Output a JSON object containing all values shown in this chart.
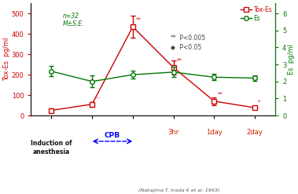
{
  "x_positions": [
    0,
    1,
    2,
    3,
    4,
    5
  ],
  "tox_values": [
    25,
    55,
    435,
    235,
    70,
    38
  ],
  "tox_errors": [
    8,
    12,
    55,
    35,
    18,
    8
  ],
  "es_values": [
    2.6,
    2.0,
    2.4,
    2.55,
    2.25,
    2.2
  ],
  "es_errors": [
    0.3,
    0.35,
    0.25,
    0.3,
    0.18,
    0.18
  ],
  "tox_color": "#cc0000",
  "es_color": "#007700",
  "ylim_left": [
    0,
    550
  ],
  "ylim_right": [
    0,
    6.6
  ],
  "yticks_left": [
    0,
    100,
    200,
    300,
    400,
    500
  ],
  "yticks_right": [
    0,
    1,
    2,
    3,
    4,
    5,
    6
  ],
  "ylabel_left": "Tox-Es  pg/ml",
  "ylabel_right": "Es  pg/ml",
  "annotation_text": "n=32\nM±S.E.",
  "legend_text1": "Tox-Es",
  "legend_text2": "Es",
  "sig1_marker": "**",
  "sig1_label": " P<0.005",
  "sig2_marker": "◆",
  "sig2_label": " P<0.05",
  "citation": "(Nakajima T, Inada K et al. 1993)",
  "background_color": "#ffffff",
  "star_tox": [
    [
      1,
      "..."
    ],
    [
      2,
      "**"
    ],
    [
      3,
      "**"
    ],
    [
      4,
      "**"
    ],
    [
      5,
      "*"
    ]
  ],
  "cpb_label": "CPB"
}
